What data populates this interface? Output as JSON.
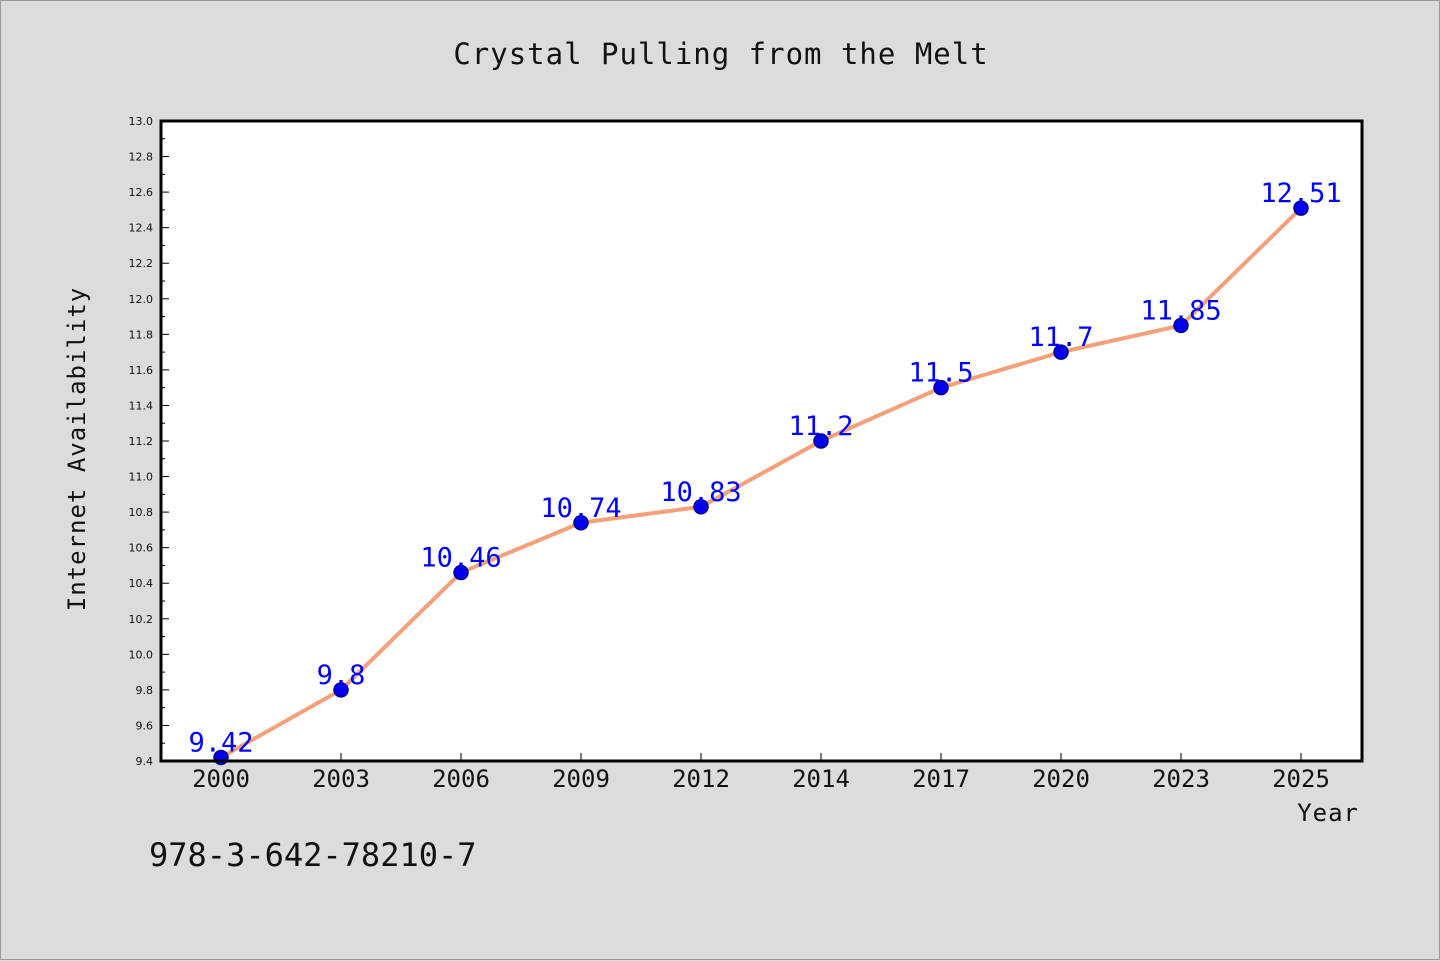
{
  "chart_data": {
    "type": "line",
    "title": "Crystal Pulling from the Melt",
    "xlabel": "Year",
    "ylabel": "Internet Availability",
    "categories": [
      "2000",
      "2003",
      "2006",
      "2009",
      "2012",
      "2014",
      "2017",
      "2020",
      "2023",
      "2025"
    ],
    "series": [
      {
        "values": [
          9.42,
          9.8,
          10.46,
          10.74,
          10.83,
          11.2,
          11.5,
          11.7,
          11.85,
          12.51
        ],
        "data_labels": [
          "9.42",
          "9.8",
          "10.46",
          "10.74",
          "10.83",
          "11.2",
          "11.5",
          "11.7",
          "11.85",
          "12.51"
        ]
      }
    ],
    "ylim": [
      9.4,
      13.0
    ],
    "y_major_step": 0.2,
    "y_ticks": [
      "9.4",
      "9.6",
      "9.8",
      "10.0",
      "10.2",
      "10.4",
      "10.6",
      "10.8",
      "11.0",
      "11.2",
      "11.4",
      "11.6",
      "11.8",
      "12.0",
      "12.2",
      "12.4",
      "12.6",
      "12.8",
      "13.0"
    ],
    "grid": false,
    "legend": "none",
    "colors": {
      "line": "#f4a07a",
      "marker_fill": "#0000ee",
      "marker_edge": "#00008b",
      "data_label": "#0000ff",
      "plot_bg": "#ffffff",
      "page_bg": "#dcdcdc"
    }
  },
  "footer": {
    "identifier": "978-3-642-78210-7"
  }
}
